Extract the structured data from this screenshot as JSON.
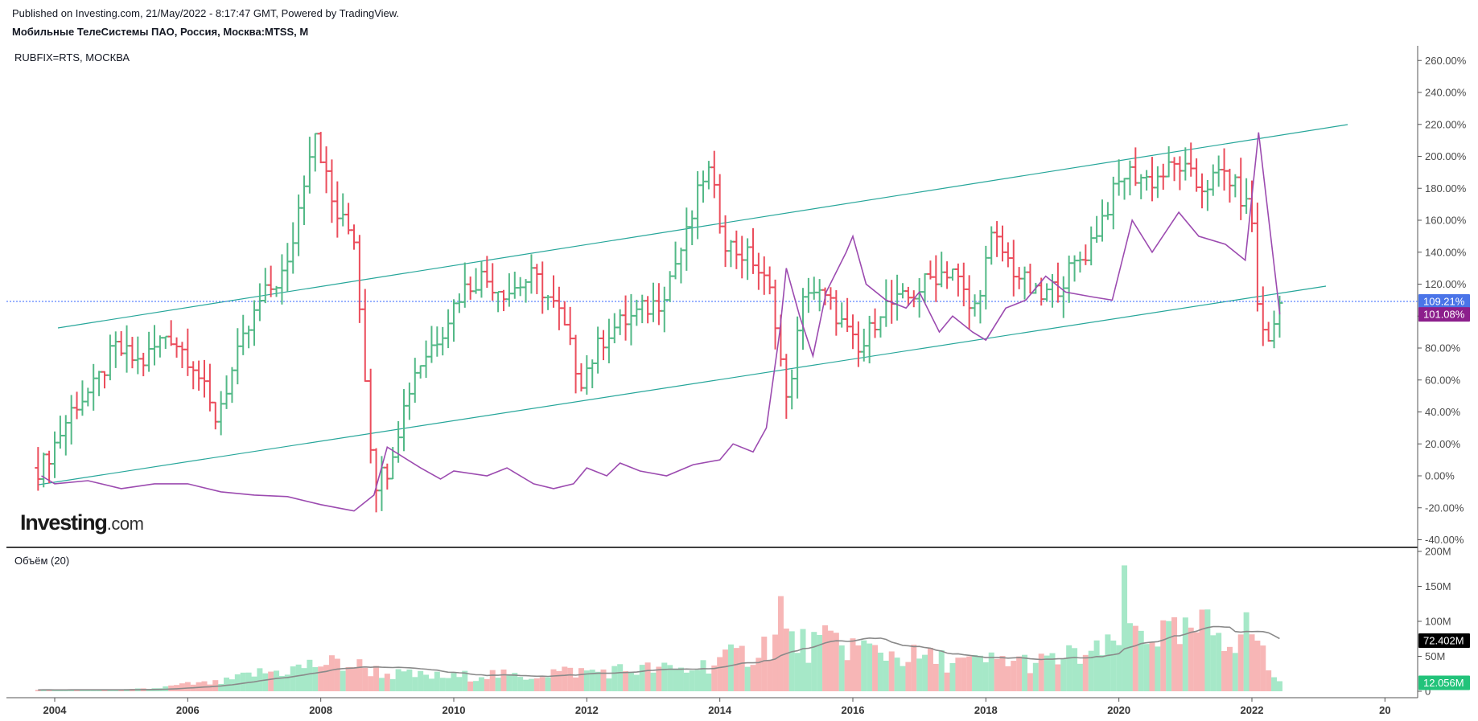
{
  "header": {
    "published": "Published on Investing.com, 21/May/2022 - 8:17:47 GMT, Powered by TradingView.",
    "instrument": "Мобильные ТелеСистемы ПАО, Россия, Москва:MTSS, M"
  },
  "logo": {
    "name": "Investing",
    "suffix": ".com"
  },
  "price_pane": {
    "compare_label": "RUBFIX=RTS, МОСКВА",
    "y_ticks": [
      "260.00%",
      "240.00%",
      "220.00%",
      "200.00%",
      "180.00%",
      "160.00%",
      "140.00%",
      "120.00%",
      "100.00%",
      "80.00%",
      "60.00%",
      "40.00%",
      "20.00%",
      "0.00%",
      "-20.00%",
      "-40.00%"
    ],
    "last_price_badge": "109.21%",
    "compare_badge": "101.08%"
  },
  "volume_pane": {
    "label": "Объём (20)",
    "y_ticks": [
      "200M",
      "150M",
      "100M",
      "50M",
      "0"
    ],
    "ma_badge": "72.402M",
    "volume_badge": "12.056M"
  },
  "x_ticks": [
    "2004",
    "2006",
    "2008",
    "2010",
    "2012",
    "2014",
    "2016",
    "2018",
    "2020",
    "2022",
    "20"
  ],
  "colors": {
    "up": "#53b987",
    "down": "#eb4d5c",
    "vol_up": "#a6e8c8",
    "vol_down": "#f7b6b6",
    "compare_line": "#9c4bb0",
    "channel": "#26a69a",
    "price_line": "#3366ff",
    "last_badge_bg": "#4a74e8",
    "compare_badge_bg": "#8c1f8c",
    "vol_ma": "#8a8a8a",
    "ma_badge_bg": "#000000",
    "vol_badge_bg": "#22c37a"
  },
  "chart_data": [
    {
      "type": "candlestick",
      "title": "Мобильные ТелеСистемы ПАО, Россия, Москва:MTSS, M",
      "interval": "monthly",
      "ylim": [
        -40,
        260
      ],
      "unit": "%",
      "price_anchors_percent": [
        [
          2003.8,
          5
        ],
        [
          2004.0,
          20
        ],
        [
          2004.3,
          45
        ],
        [
          2004.6,
          55
        ],
        [
          2004.9,
          80
        ],
        [
          2005.3,
          70
        ],
        [
          2005.7,
          90
        ],
        [
          2006.1,
          70
        ],
        [
          2006.4,
          35
        ],
        [
          2006.8,
          80
        ],
        [
          2007.1,
          110
        ],
        [
          2007.5,
          130
        ],
        [
          2007.9,
          220
        ],
        [
          2008.2,
          165
        ],
        [
          2008.5,
          150
        ],
        [
          2008.8,
          -5
        ],
        [
          2009.0,
          5
        ],
        [
          2009.4,
          65
        ],
        [
          2009.8,
          90
        ],
        [
          2010.1,
          115
        ],
        [
          2010.4,
          125
        ],
        [
          2010.8,
          115
        ],
        [
          2011.2,
          125
        ],
        [
          2011.6,
          100
        ],
        [
          2011.9,
          60
        ],
        [
          2012.3,
          90
        ],
        [
          2012.7,
          100
        ],
        [
          2013.1,
          110
        ],
        [
          2013.5,
          150
        ],
        [
          2013.8,
          195
        ],
        [
          2014.1,
          145
        ],
        [
          2014.5,
          135
        ],
        [
          2014.8,
          110
        ],
        [
          2015.0,
          45
        ],
        [
          2015.3,
          120
        ],
        [
          2015.7,
          105
        ],
        [
          2016.1,
          75
        ],
        [
          2016.4,
          105
        ],
        [
          2016.8,
          110
        ],
        [
          2017.2,
          125
        ],
        [
          2017.5,
          130
        ],
        [
          2017.8,
          100
        ],
        [
          2018.1,
          150
        ],
        [
          2018.4,
          130
        ],
        [
          2018.8,
          110
        ],
        [
          2019.1,
          120
        ],
        [
          2019.5,
          140
        ],
        [
          2019.9,
          175
        ],
        [
          2020.1,
          190
        ],
        [
          2020.5,
          185
        ],
        [
          2020.9,
          195
        ],
        [
          2021.2,
          180
        ],
        [
          2021.6,
          190
        ],
        [
          2021.9,
          170
        ],
        [
          2022.0,
          160
        ],
        [
          2022.1,
          95
        ],
        [
          2022.3,
          85
        ],
        [
          2022.42,
          109.21
        ]
      ]
    },
    {
      "type": "line",
      "name": "RUBFIX=RTS, МОСКВА",
      "unit": "%",
      "points": [
        [
          2003.8,
          0
        ],
        [
          2004.0,
          -5
        ],
        [
          2004.5,
          -3
        ],
        [
          2005.0,
          -8
        ],
        [
          2005.5,
          -5
        ],
        [
          2006.0,
          -5
        ],
        [
          2006.5,
          -10
        ],
        [
          2007.0,
          -12
        ],
        [
          2007.5,
          -13
        ],
        [
          2008.0,
          -18
        ],
        [
          2008.5,
          -22
        ],
        [
          2008.8,
          -12
        ],
        [
          2009.0,
          18
        ],
        [
          2009.5,
          5
        ],
        [
          2009.8,
          -2
        ],
        [
          2010.0,
          3
        ],
        [
          2010.5,
          0
        ],
        [
          2010.8,
          5
        ],
        [
          2011.2,
          -5
        ],
        [
          2011.5,
          -8
        ],
        [
          2011.8,
          -5
        ],
        [
          2012.0,
          5
        ],
        [
          2012.3,
          0
        ],
        [
          2012.5,
          8
        ],
        [
          2012.8,
          3
        ],
        [
          2013.2,
          0
        ],
        [
          2013.6,
          7
        ],
        [
          2014.0,
          10
        ],
        [
          2014.2,
          20
        ],
        [
          2014.5,
          15
        ],
        [
          2014.7,
          30
        ],
        [
          2014.9,
          90
        ],
        [
          2015.0,
          130
        ],
        [
          2015.2,
          100
        ],
        [
          2015.4,
          75
        ],
        [
          2015.6,
          115
        ],
        [
          2015.9,
          140
        ],
        [
          2016.0,
          150
        ],
        [
          2016.2,
          120
        ],
        [
          2016.5,
          110
        ],
        [
          2016.8,
          105
        ],
        [
          2017.0,
          115
        ],
        [
          2017.3,
          90
        ],
        [
          2017.5,
          100
        ],
        [
          2017.8,
          90
        ],
        [
          2018.0,
          85
        ],
        [
          2018.3,
          105
        ],
        [
          2018.6,
          110
        ],
        [
          2018.9,
          125
        ],
        [
          2019.2,
          115
        ],
        [
          2019.6,
          112
        ],
        [
          2019.9,
          110
        ],
        [
          2020.2,
          160
        ],
        [
          2020.5,
          140
        ],
        [
          2020.9,
          165
        ],
        [
          2021.2,
          150
        ],
        [
          2021.6,
          145
        ],
        [
          2021.9,
          135
        ],
        [
          2022.1,
          215
        ],
        [
          2022.42,
          101.08
        ]
      ]
    },
    {
      "type": "bar",
      "title": "Объём (20)",
      "unit": "M",
      "ylim": [
        0,
        200
      ],
      "volume_anchors_M": [
        [
          2003.8,
          2
        ],
        [
          2005.0,
          2
        ],
        [
          2005.5,
          4
        ],
        [
          2006.0,
          10
        ],
        [
          2006.5,
          12
        ],
        [
          2007.0,
          25
        ],
        [
          2007.5,
          30
        ],
        [
          2008.0,
          40
        ],
        [
          2008.5,
          38
        ],
        [
          2009.0,
          25
        ],
        [
          2009.5,
          22
        ],
        [
          2010.0,
          20
        ],
        [
          2010.5,
          25
        ],
        [
          2011.0,
          20
        ],
        [
          2011.5,
          28
        ],
        [
          2012.0,
          28
        ],
        [
          2012.5,
          30
        ],
        [
          2013.0,
          32
        ],
        [
          2013.5,
          30
        ],
        [
          2014.0,
          45
        ],
        [
          2014.5,
          55
        ],
        [
          2014.9,
          80
        ],
        [
          2015.3,
          65
        ],
        [
          2015.8,
          70
        ],
        [
          2016.2,
          60
        ],
        [
          2016.8,
          50
        ],
        [
          2017.3,
          45
        ],
        [
          2017.8,
          40
        ],
        [
          2018.3,
          45
        ],
        [
          2018.8,
          40
        ],
        [
          2019.3,
          50
        ],
        [
          2019.8,
          55
        ],
        [
          2020.1,
          90
        ],
        [
          2020.5,
          85
        ],
        [
          2020.9,
          75
        ],
        [
          2021.3,
          90
        ],
        [
          2021.7,
          80
        ],
        [
          2022.0,
          90
        ],
        [
          2022.3,
          25
        ],
        [
          2022.42,
          12.056
        ]
      ],
      "volume_ma_last": 72.402
    }
  ]
}
